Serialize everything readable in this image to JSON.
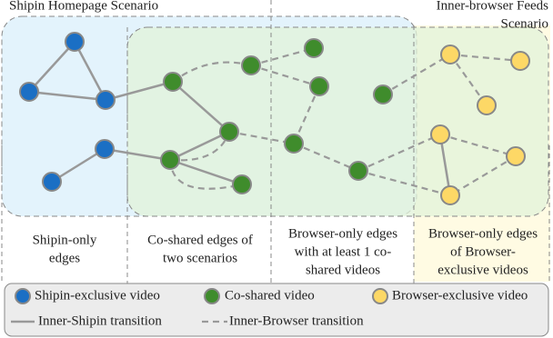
{
  "header": {
    "left_title": "Shipin Homepage Scenario",
    "right_title": [
      "Inner-browser Feeds",
      "Scenario"
    ]
  },
  "captions": [
    [
      "Shipin-only",
      "edges"
    ],
    [
      "Co-shared edges of",
      "two scenarios"
    ],
    [
      "Browser-only edges",
      "with at least 1 co-",
      "shared videos"
    ],
    [
      "Browser-only edges",
      "of Browser-",
      "exclusive videos"
    ]
  ],
  "legend": {
    "nodes": [
      "Shipin-exclusive video",
      "Co-shared video",
      "Browser-exclusive video"
    ],
    "edges": [
      "Inner-Shipin transition",
      "Inner-Browser transition"
    ]
  }
}
